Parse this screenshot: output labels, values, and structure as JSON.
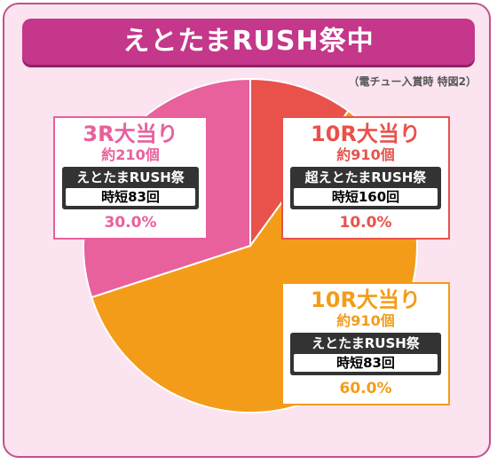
{
  "title": "えとたまRUSH祭中",
  "subnote": "（電チュー入賞時 特図2）",
  "colors": {
    "frame_bg": "#fbe3ef",
    "title_bg": "#c4378a",
    "slice_red": "#e8524a",
    "slice_orange": "#f39c19",
    "slice_pink": "#e8609c"
  },
  "chart_data": {
    "type": "pie",
    "slices": [
      {
        "label": "10R大当り",
        "value": 10.0,
        "color": "#e8524a"
      },
      {
        "label": "10R大当り",
        "value": 60.0,
        "color": "#f39c19"
      },
      {
        "label": "3R大当り",
        "value": 30.0,
        "color": "#e8609c"
      }
    ]
  },
  "labels": [
    {
      "id": "red",
      "title": "10R大当り",
      "count": "約910個",
      "mode": "超えとたまRUSH祭",
      "jitan": "時短160回",
      "pct": "10.0%",
      "color": "#e8524a"
    },
    {
      "id": "orange",
      "title": "10R大当り",
      "count": "約910個",
      "mode": "えとたまRUSH祭",
      "jitan": "時短83回",
      "pct": "60.0%",
      "color": "#f39c19"
    },
    {
      "id": "pink",
      "title": "3R大当り",
      "count": "約210個",
      "mode": "えとたまRUSH祭",
      "jitan": "時短83回",
      "pct": "30.0%",
      "color": "#e8609c"
    }
  ]
}
